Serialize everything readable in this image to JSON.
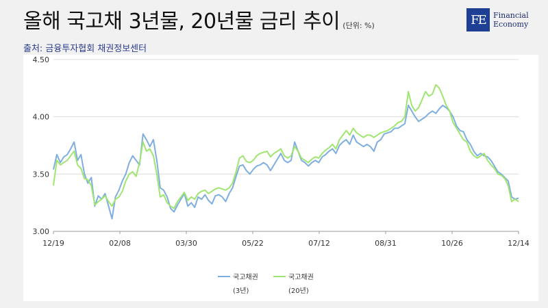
{
  "header": {
    "title": "올해 국고채 3년물, 20년물 금리 추이",
    "unit": "(단위: %)",
    "source": "출처: 금융투자협회 채권정보센터"
  },
  "logo": {
    "mark": "FE",
    "line1": "Financial",
    "line2": "Economy"
  },
  "chart_data": {
    "type": "line",
    "y_ticks": [
      "3.00",
      "3.50",
      "4.00",
      "4.50"
    ],
    "ylim": [
      3.0,
      4.5
    ],
    "x_ticks": [
      "12/19",
      "02/08",
      "03/30",
      "05/22",
      "07/12",
      "08/31",
      "10/26",
      "12/14"
    ],
    "grid": "horizontal",
    "legend_position": "bottom",
    "series": [
      {
        "name": "국고채권",
        "name_line2": "(3년)",
        "color": "#7eaee0",
        "values": [
          3.54,
          3.67,
          3.6,
          3.65,
          3.67,
          3.72,
          3.78,
          3.62,
          3.67,
          3.5,
          3.42,
          3.47,
          3.22,
          3.31,
          3.28,
          3.33,
          3.22,
          3.11,
          3.3,
          3.36,
          3.44,
          3.5,
          3.6,
          3.66,
          3.62,
          3.58,
          3.85,
          3.8,
          3.74,
          3.8,
          3.62,
          3.38,
          3.36,
          3.3,
          3.2,
          3.17,
          3.23,
          3.28,
          3.33,
          3.22,
          3.25,
          3.21,
          3.3,
          3.28,
          3.32,
          3.27,
          3.24,
          3.31,
          3.32,
          3.3,
          3.26,
          3.33,
          3.38,
          3.48,
          3.57,
          3.58,
          3.53,
          3.5,
          3.54,
          3.57,
          3.58,
          3.6,
          3.58,
          3.53,
          3.58,
          3.63,
          3.68,
          3.62,
          3.6,
          3.62,
          3.78,
          3.7,
          3.62,
          3.6,
          3.57,
          3.6,
          3.62,
          3.6,
          3.65,
          3.67,
          3.7,
          3.72,
          3.68,
          3.75,
          3.78,
          3.8,
          3.76,
          3.84,
          3.78,
          3.76,
          3.74,
          3.76,
          3.74,
          3.7,
          3.78,
          3.8,
          3.85,
          3.86,
          3.87,
          3.9,
          3.9,
          3.92,
          3.94,
          4.1,
          4.05,
          4.0,
          3.96,
          3.98,
          4.0,
          4.03,
          4.05,
          4.03,
          4.07,
          4.1,
          4.08,
          4.05,
          4.0,
          3.92,
          3.88,
          3.87,
          3.8,
          3.76,
          3.7,
          3.66,
          3.68,
          3.66,
          3.65,
          3.62,
          3.57,
          3.52,
          3.5,
          3.47,
          3.44,
          3.3,
          3.28,
          3.29
        ]
      },
      {
        "name": "국고채권",
        "name_line2": "(20년)",
        "color": "#9ee66f",
        "values": [
          3.4,
          3.62,
          3.58,
          3.6,
          3.62,
          3.66,
          3.7,
          3.58,
          3.55,
          3.46,
          3.45,
          3.4,
          3.23,
          3.26,
          3.28,
          3.31,
          3.26,
          3.22,
          3.28,
          3.3,
          3.35,
          3.44,
          3.5,
          3.52,
          3.48,
          3.6,
          3.78,
          3.7,
          3.72,
          3.66,
          3.5,
          3.3,
          3.32,
          3.25,
          3.22,
          3.2,
          3.26,
          3.3,
          3.34,
          3.27,
          3.3,
          3.28,
          3.33,
          3.35,
          3.36,
          3.33,
          3.35,
          3.37,
          3.38,
          3.37,
          3.36,
          3.38,
          3.42,
          3.52,
          3.64,
          3.66,
          3.61,
          3.6,
          3.62,
          3.66,
          3.68,
          3.69,
          3.7,
          3.65,
          3.68,
          3.7,
          3.72,
          3.66,
          3.64,
          3.66,
          3.74,
          3.7,
          3.64,
          3.62,
          3.6,
          3.63,
          3.65,
          3.64,
          3.68,
          3.71,
          3.73,
          3.76,
          3.72,
          3.8,
          3.84,
          3.88,
          3.84,
          3.9,
          3.86,
          3.84,
          3.82,
          3.84,
          3.84,
          3.82,
          3.84,
          3.86,
          3.87,
          3.88,
          3.9,
          3.92,
          3.95,
          3.96,
          4.0,
          4.22,
          4.1,
          4.05,
          4.08,
          4.15,
          4.22,
          4.18,
          4.2,
          4.28,
          4.25,
          4.18,
          4.1,
          4.05,
          3.95,
          3.9,
          3.85,
          3.8,
          3.78,
          3.7,
          3.66,
          3.64,
          3.66,
          3.68,
          3.62,
          3.58,
          3.55,
          3.5,
          3.49,
          3.46,
          3.4,
          3.26,
          3.28,
          3.26
        ]
      }
    ]
  }
}
